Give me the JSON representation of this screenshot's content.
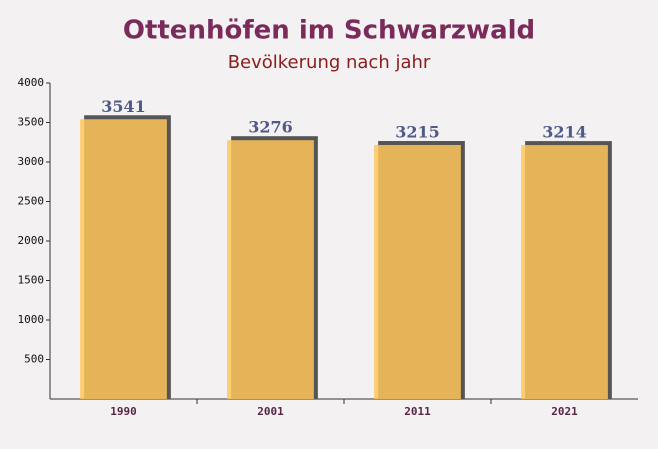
{
  "chart_data": {
    "type": "bar",
    "title": "Ottenhöfen im Schwarzwald",
    "subtitle": "Bevölkerung nach jahr",
    "categories": [
      "1990",
      "2001",
      "2011",
      "2021"
    ],
    "values": [
      3541,
      3276,
      3215,
      3214
    ],
    "color": "#ffc55a",
    "ylim": [
      0,
      4000
    ],
    "yticks": [
      500,
      1000,
      1500,
      2000,
      2500,
      3000,
      3500,
      4000
    ],
    "grid": false
  }
}
